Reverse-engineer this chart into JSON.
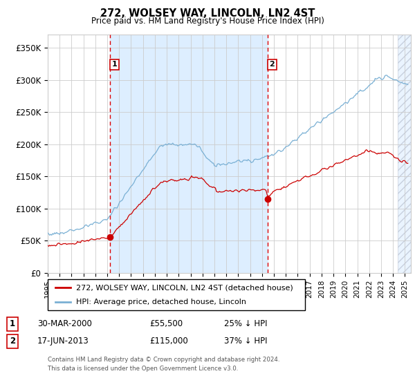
{
  "title": "272, WOLSEY WAY, LINCOLN, LN2 4ST",
  "subtitle": "Price paid vs. HM Land Registry's House Price Index (HPI)",
  "hpi_color": "#7ab0d4",
  "price_color": "#cc0000",
  "bg_shading_color": "#ddeeff",
  "xlim_start": 1995.0,
  "xlim_end": 2025.5,
  "ylim": [
    0,
    370000
  ],
  "yticks": [
    0,
    50000,
    100000,
    150000,
    200000,
    250000,
    300000,
    350000
  ],
  "ytick_labels": [
    "£0",
    "£50K",
    "£100K",
    "£150K",
    "£200K",
    "£250K",
    "£300K",
    "£350K"
  ],
  "marker1_date": 2000.23,
  "marker1_price": 55500,
  "marker1_label": "1",
  "marker1_date_str": "30-MAR-2000",
  "marker1_price_str": "£55,500",
  "marker1_hpi_str": "25% ↓ HPI",
  "marker2_date": 2013.46,
  "marker2_price": 115000,
  "marker2_label": "2",
  "marker2_date_str": "17-JUN-2013",
  "marker2_price_str": "£115,000",
  "marker2_hpi_str": "37% ↓ HPI",
  "legend_line1": "272, WOLSEY WAY, LINCOLN, LN2 4ST (detached house)",
  "legend_line2": "HPI: Average price, detached house, Lincoln",
  "footnote1": "Contains HM Land Registry data © Crown copyright and database right 2024.",
  "footnote2": "This data is licensed under the Open Government Licence v3.0.",
  "grid_color": "#cccccc",
  "hatch_start": 2024.42
}
